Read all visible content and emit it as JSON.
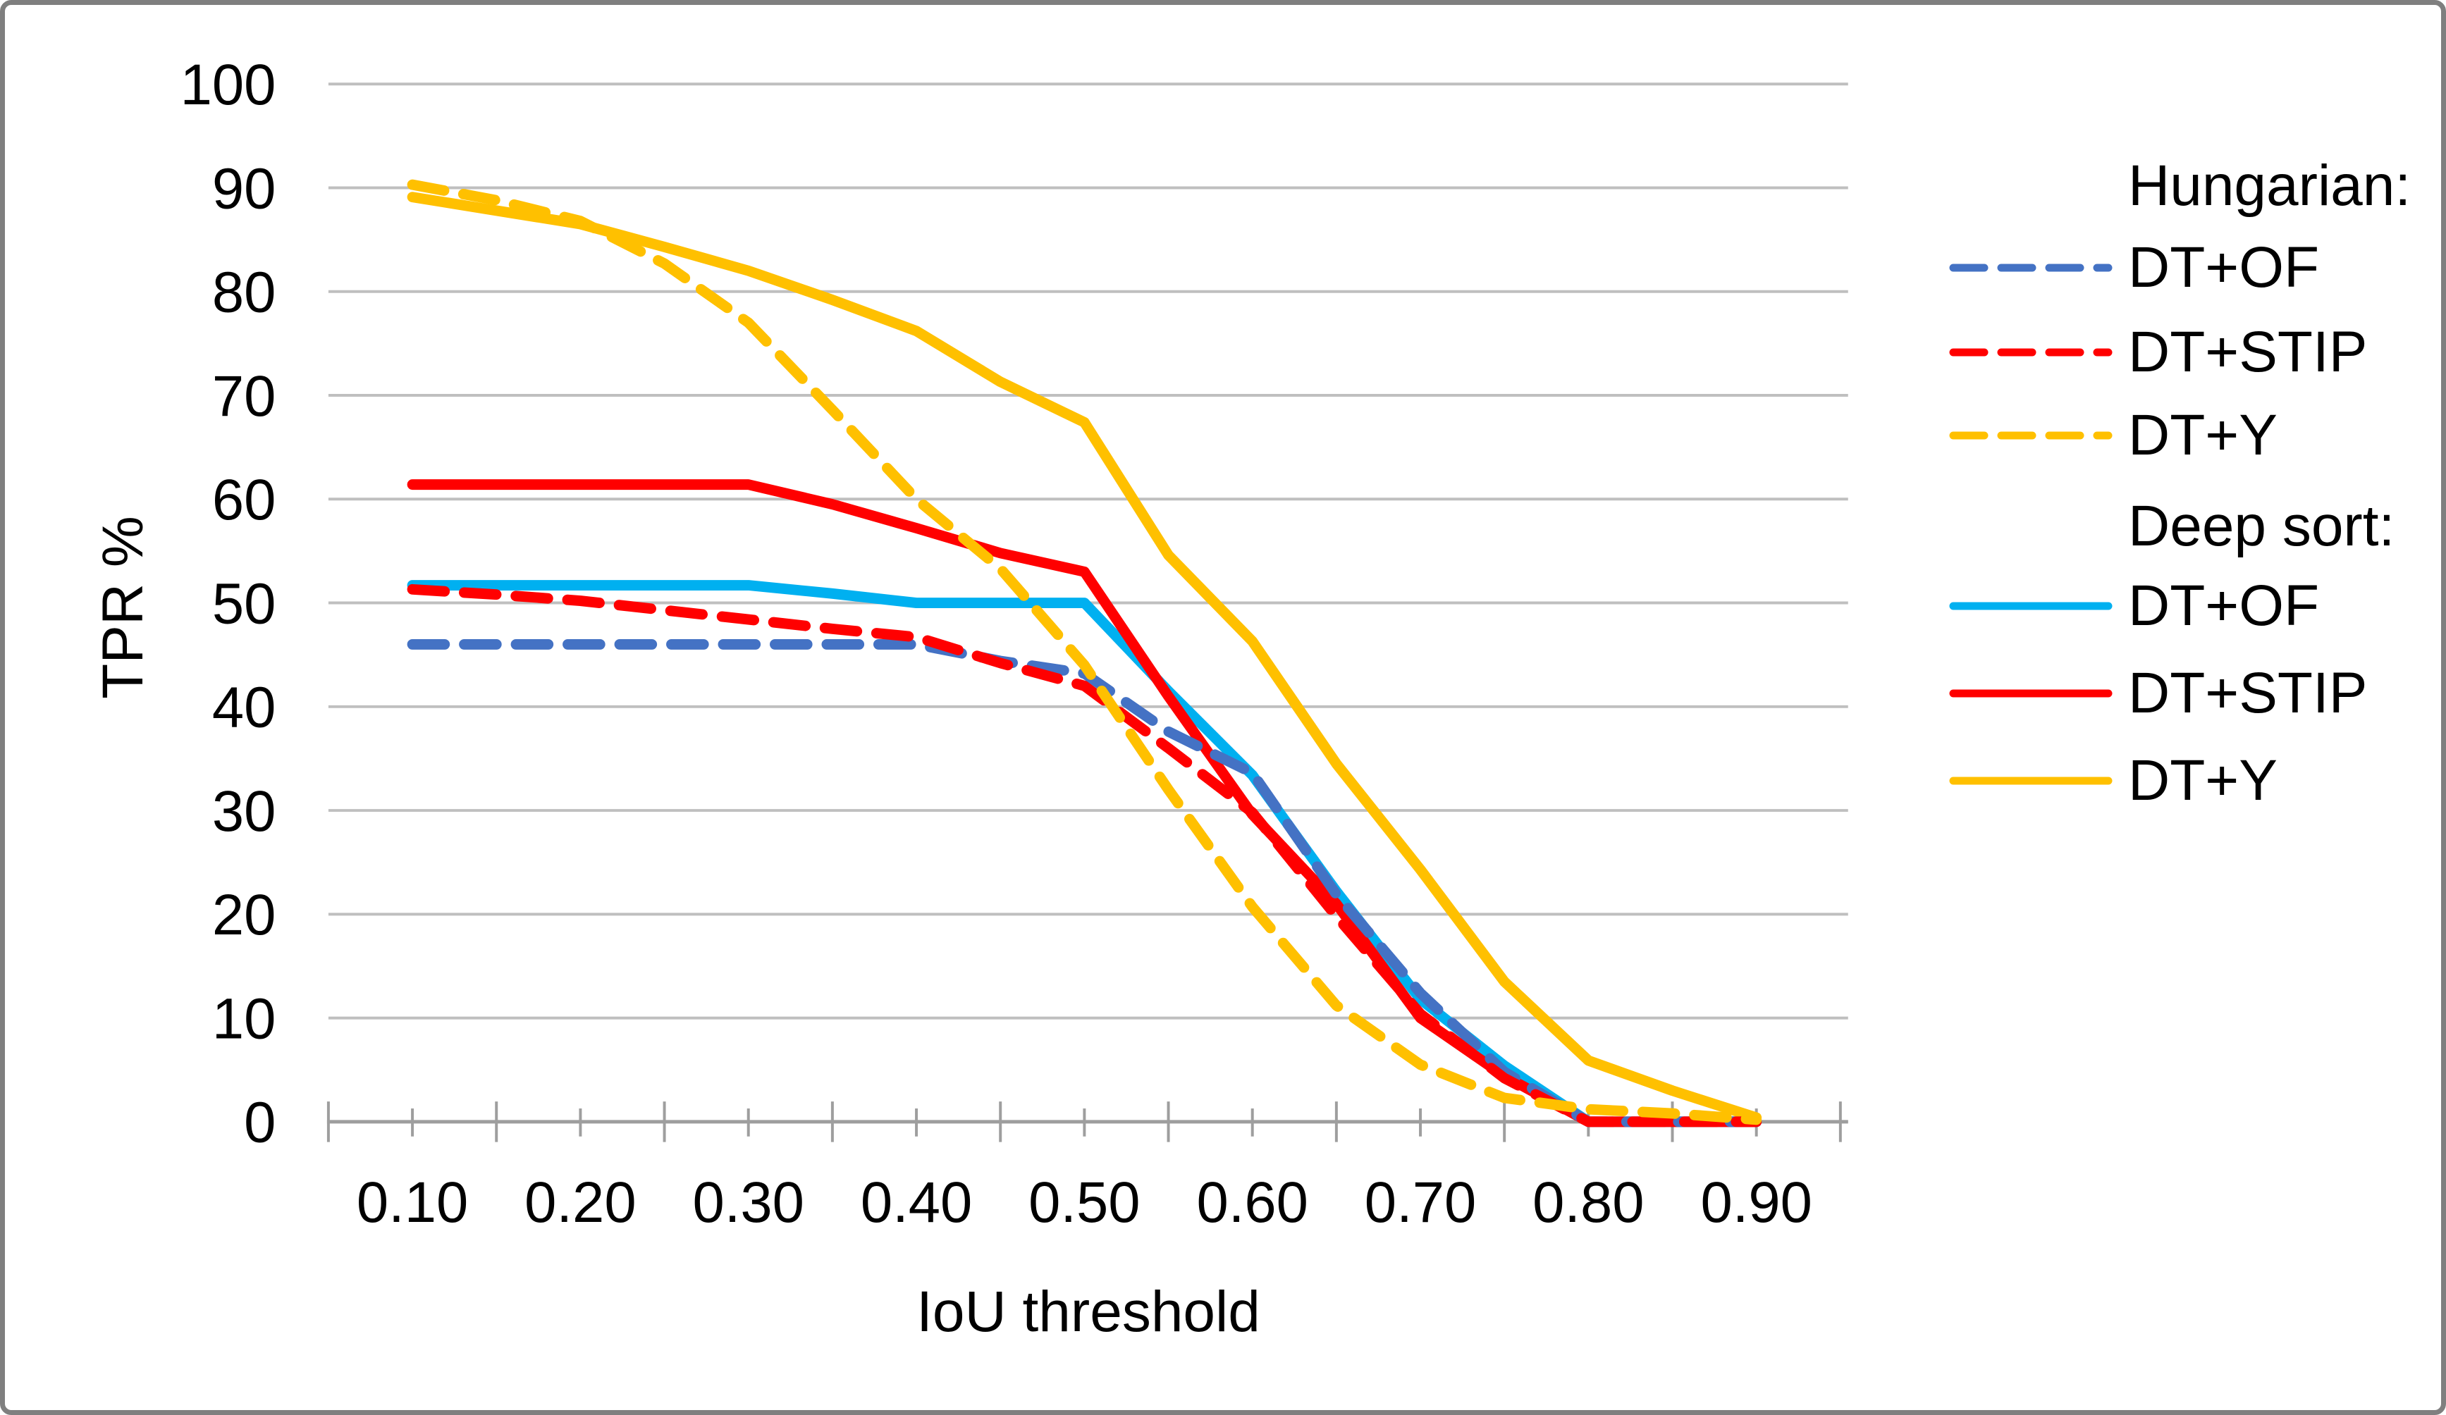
{
  "chart_data": {
    "type": "line",
    "title": "",
    "xlabel": "IoU threshold",
    "ylabel": "TPR %",
    "x": [
      0.1,
      0.15,
      0.2,
      0.25,
      0.3,
      0.35,
      0.4,
      0.45,
      0.5,
      0.55,
      0.6,
      0.65,
      0.7,
      0.75,
      0.8,
      0.85,
      0.9
    ],
    "x_tick_labels": [
      "0.10",
      "0.20",
      "0.30",
      "0.40",
      "0.50",
      "0.60",
      "0.70",
      "0.80",
      "0.90"
    ],
    "y_ticks": [
      0,
      10,
      20,
      30,
      40,
      50,
      60,
      70,
      80,
      90,
      100
    ],
    "ylim": [
      0,
      100
    ],
    "grid": "horizontal",
    "legend_position": "right",
    "axis_color": "#9e9e9e",
    "gridline_color": "#bfbfbf",
    "series": [
      {
        "id": "hungarian-dt-of",
        "group": "Hungarian:",
        "label": "DT+OF",
        "style": "dashed",
        "color": "#4472C4",
        "values": [
          46,
          46,
          46,
          46,
          46,
          46,
          46,
          44.4,
          43.2,
          37.6,
          33.6,
          21.9,
          12.4,
          4.8,
          0,
          0,
          0
        ]
      },
      {
        "id": "hungarian-dt-stip",
        "group": "Hungarian:",
        "label": "DT+STIP",
        "style": "dashed",
        "color": "#FF0000",
        "values": [
          51.3,
          50.8,
          50.2,
          49.3,
          48.4,
          47.5,
          46.7,
          44.2,
          42,
          36,
          29.8,
          19.8,
          10.4,
          4.2,
          0,
          0,
          0
        ]
      },
      {
        "id": "hungarian-dt-y",
        "group": "Hungarian:",
        "label": "DT+Y",
        "style": "dashed",
        "color": "#FFC000",
        "values": [
          90.3,
          88.8,
          86.8,
          82.7,
          77,
          68.6,
          60,
          53.3,
          44,
          32,
          20.7,
          11.2,
          5.5,
          2.3,
          1.2,
          0.8,
          0.2
        ]
      },
      {
        "id": "deepsort-dt-of",
        "group": "Deep sort:",
        "label": "DT+OF",
        "style": "solid",
        "color": "#00B0F0",
        "values": [
          51.7,
          51.7,
          51.7,
          51.7,
          51.7,
          50.9,
          50,
          50,
          50,
          41.5,
          33.4,
          22.2,
          11.8,
          5.4,
          0,
          0,
          0
        ]
      },
      {
        "id": "deepsort-dt-stip",
        "group": "Deep sort:",
        "label": "DT+STIP",
        "style": "solid",
        "color": "#FF0000",
        "values": [
          61.4,
          61.4,
          61.4,
          61.4,
          61.4,
          59.5,
          57.2,
          54.8,
          53,
          41,
          29.6,
          21,
          10,
          4.4,
          0,
          0,
          0
        ]
      },
      {
        "id": "deepsort-dt-y",
        "group": "Deep sort:",
        "label": "DT+Y",
        "style": "solid",
        "color": "#FFC000",
        "values": [
          89.1,
          87.8,
          86.5,
          84.3,
          82,
          79.2,
          76.2,
          71.3,
          67.4,
          54.6,
          46.3,
          34.5,
          24.3,
          13.5,
          5.9,
          3,
          0.4
        ]
      }
    ]
  },
  "legend": {
    "headings": [
      "Hungarian:",
      "Deep sort:"
    ]
  }
}
